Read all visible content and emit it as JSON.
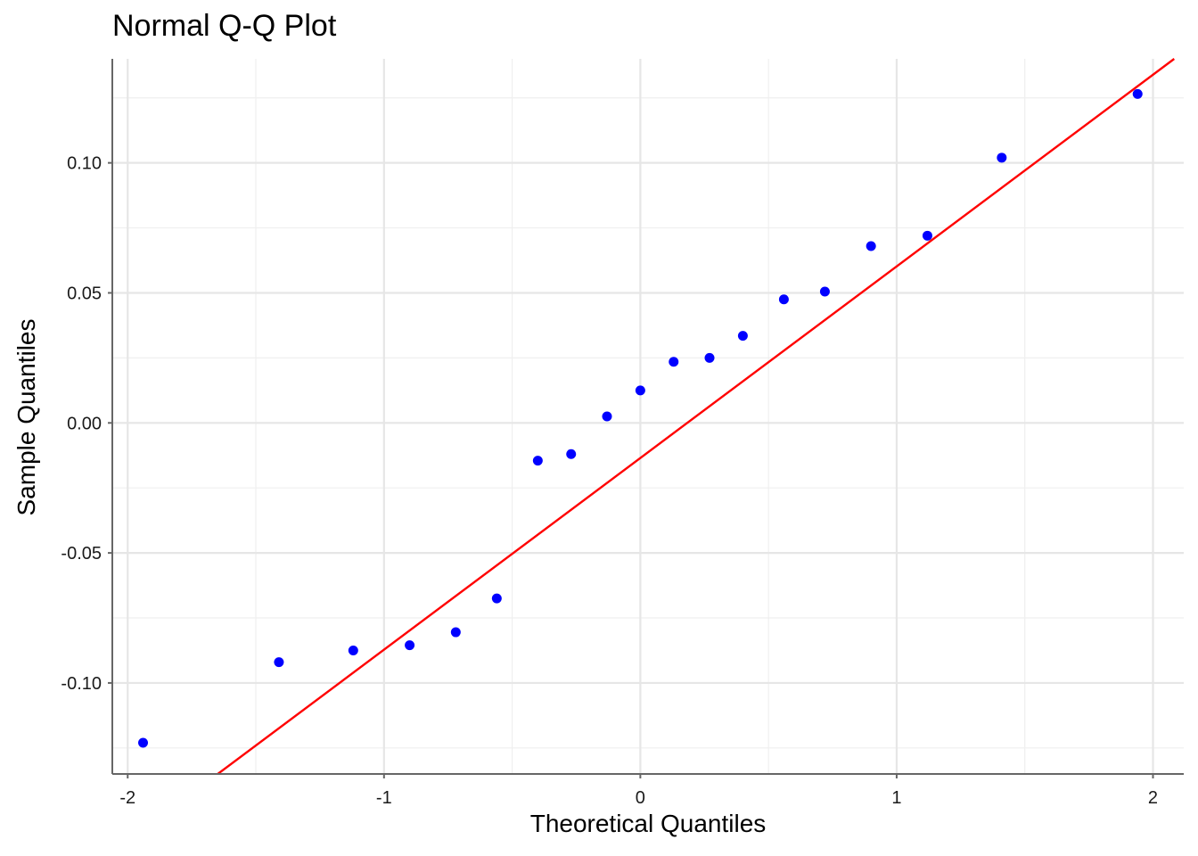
{
  "chart_data": {
    "type": "scatter",
    "title": "Normal Q-Q Plot",
    "xlabel": "Theoretical Quantiles",
    "ylabel": "Sample Quantiles",
    "xlim": [
      -2.06,
      2.12
    ],
    "ylim": [
      -0.135,
      0.14
    ],
    "x_ticks": [
      -2,
      -1,
      0,
      1,
      2
    ],
    "x_tick_labels": [
      "-2",
      "-1",
      "0",
      "1",
      "2"
    ],
    "y_ticks": [
      -0.1,
      -0.05,
      0.0,
      0.05,
      0.1
    ],
    "y_tick_labels": [
      "-0.10",
      "-0.05",
      "0.00",
      "0.05",
      "0.10"
    ],
    "grid": true,
    "series": [
      {
        "type": "scatter",
        "color": "#0000ff",
        "points": [
          [
            -1.94,
            -0.123
          ],
          [
            -1.41,
            -0.092
          ],
          [
            -1.12,
            -0.0875
          ],
          [
            -0.9,
            -0.0855
          ],
          [
            -0.72,
            -0.0805
          ],
          [
            -0.56,
            -0.0675
          ],
          [
            -0.4,
            -0.0145
          ],
          [
            -0.27,
            -0.012
          ],
          [
            -0.13,
            0.0025
          ],
          [
            0.0,
            0.0125
          ],
          [
            0.13,
            0.0235
          ],
          [
            0.27,
            0.025
          ],
          [
            0.4,
            0.0335
          ],
          [
            0.56,
            0.0475
          ],
          [
            0.72,
            0.0505
          ],
          [
            0.9,
            0.068
          ],
          [
            1.12,
            0.072
          ],
          [
            1.41,
            0.102
          ],
          [
            1.94,
            0.1265
          ]
        ]
      },
      {
        "type": "line",
        "color": "#ff0000",
        "slope": 0.0737,
        "intercept": -0.0135
      }
    ]
  }
}
